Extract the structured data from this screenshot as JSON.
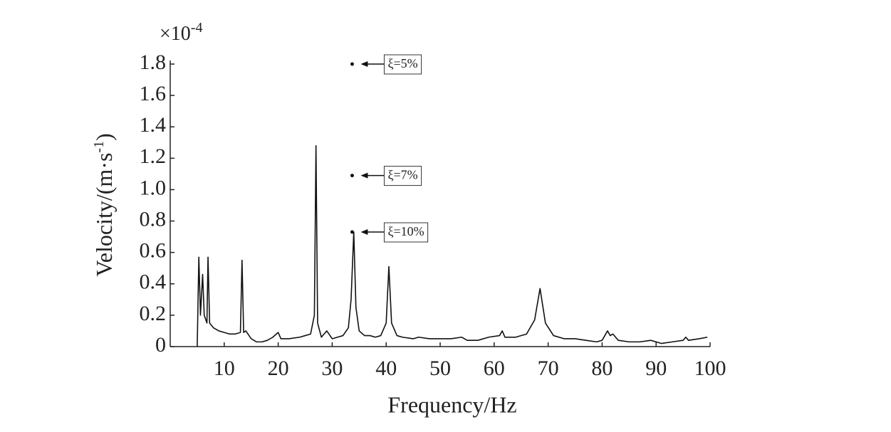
{
  "chart_data": {
    "type": "line",
    "xlabel": "Frequency/Hz",
    "ylabel": {
      "text": "Velocity/(m·s",
      "superscript": "-1",
      "suffix": ")"
    },
    "y_multiplier": {
      "base": "×10",
      "exponent": "-4"
    },
    "color": "#111111",
    "xlim": [
      0,
      100
    ],
    "xticks": [
      10,
      20,
      30,
      40,
      50,
      60,
      70,
      80,
      90,
      100
    ],
    "ylim": [
      0,
      1.8
    ],
    "yticks": [
      0,
      0.2,
      0.4,
      0.6,
      0.8,
      {
        "value": 1,
        "label": "1.0"
      },
      1.2,
      1.4,
      1.6,
      1.8
    ],
    "x": [
      5.0,
      5.3,
      5.6,
      6.0,
      6.3,
      6.8,
      7.0,
      7.3,
      8,
      9,
      10,
      11,
      12,
      13,
      13.3,
      13.6,
      14,
      15,
      16,
      17,
      18,
      19,
      20,
      20.5,
      22,
      24,
      25,
      26,
      26.7,
      27.0,
      27.3,
      28,
      29,
      30,
      31,
      32,
      33,
      33.5,
      34.0,
      34.4,
      35,
      36,
      37,
      38,
      39,
      40,
      40.5,
      41,
      42,
      43,
      45,
      46,
      48,
      50,
      52,
      54,
      55,
      57,
      59,
      61,
      61.5,
      62,
      64,
      66,
      67.5,
      68.5,
      69.5,
      71,
      73,
      75,
      77,
      79,
      80,
      81,
      81.5,
      82,
      83,
      85,
      87,
      89,
      91,
      93,
      95,
      95.5,
      96,
      98,
      99.5
    ],
    "values": [
      0,
      0.57,
      0.2,
      0.46,
      0.2,
      0.15,
      0.57,
      0.15,
      0.12,
      0.1,
      0.09,
      0.08,
      0.08,
      0.09,
      0.55,
      0.09,
      0.1,
      0.05,
      0.03,
      0.03,
      0.04,
      0.06,
      0.09,
      0.05,
      0.05,
      0.06,
      0.07,
      0.08,
      0.2,
      1.28,
      0.15,
      0.06,
      0.1,
      0.05,
      0.06,
      0.07,
      0.12,
      0.3,
      0.73,
      0.25,
      0.1,
      0.07,
      0.07,
      0.06,
      0.07,
      0.15,
      0.51,
      0.15,
      0.07,
      0.06,
      0.05,
      0.06,
      0.05,
      0.05,
      0.05,
      0.06,
      0.04,
      0.04,
      0.06,
      0.07,
      0.1,
      0.06,
      0.06,
      0.08,
      0.17,
      0.37,
      0.15,
      0.07,
      0.05,
      0.05,
      0.04,
      0.03,
      0.04,
      0.1,
      0.07,
      0.08,
      0.04,
      0.03,
      0.03,
      0.04,
      0.02,
      0.03,
      0.04,
      0.06,
      0.04,
      0.05,
      0.06
    ],
    "annotations": [
      {
        "text": "ξ=5%",
        "x": 33.7,
        "y": 1.8
      },
      {
        "text": "ξ=7%",
        "x": 33.7,
        "y": 1.09
      },
      {
        "text": "ξ=10%",
        "x": 33.7,
        "y": 0.73
      }
    ]
  }
}
